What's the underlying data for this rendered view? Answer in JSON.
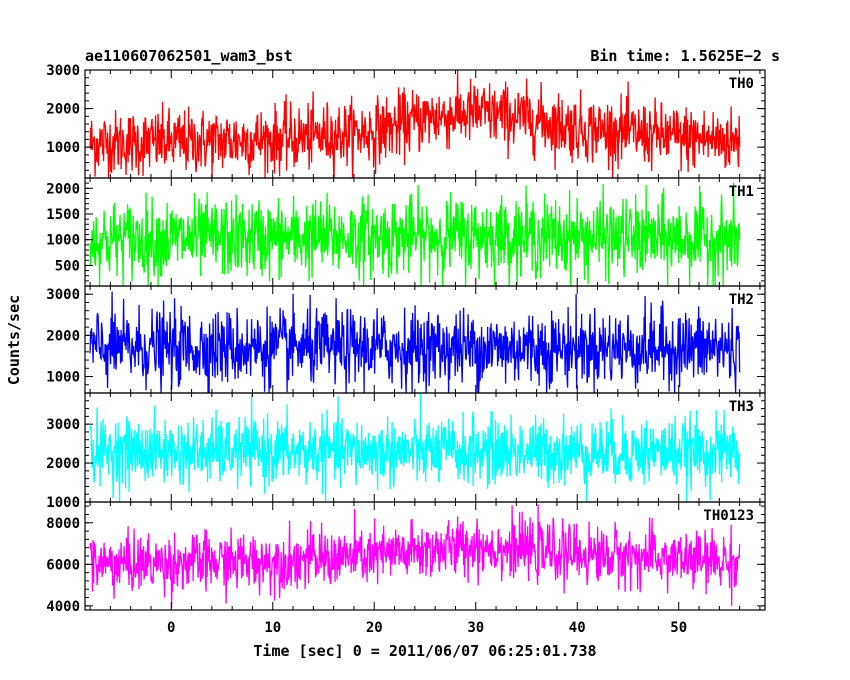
{
  "chart_data": {
    "type": "line",
    "title": "ae110607062501_wam3_bst",
    "subtitle": "Bin time: 1.5625E−2 s",
    "xlabel": "Time [sec] 0 = 2011/06/07 06:25:01.738",
    "ylabel": "Counts/sec",
    "xlim": [
      -8.5,
      58.5
    ],
    "x_ticks": [
      0,
      10,
      20,
      30,
      40,
      50
    ],
    "x_tick_labels": [
      "0",
      "10",
      "20",
      "30",
      "40",
      "50"
    ],
    "x_data_range": [
      -8,
      56
    ],
    "grid": false,
    "panels": [
      {
        "name": "TH0",
        "color": "#ff0000",
        "ylim": [
          200,
          3000
        ],
        "y_ticks": [
          1000,
          2000,
          3000
        ],
        "y_tick_labels": [
          "1000",
          "2000",
          "3000"
        ],
        "profile": [
          {
            "x": -8,
            "mean": 1100
          },
          {
            "x": 0,
            "mean": 1130
          },
          {
            "x": 10,
            "mean": 1200
          },
          {
            "x": 20,
            "mean": 1400
          },
          {
            "x": 25,
            "mean": 1750
          },
          {
            "x": 30,
            "mean": 1900
          },
          {
            "x": 35,
            "mean": 1750
          },
          {
            "x": 40,
            "mean": 1500
          },
          {
            "x": 50,
            "mean": 1250
          },
          {
            "x": 56,
            "mean": 1150
          }
        ],
        "spread": 420
      },
      {
        "name": "TH1",
        "color": "#00ff00",
        "ylim": [
          100,
          2200
        ],
        "y_ticks": [
          500,
          1000,
          1500,
          2000
        ],
        "y_tick_labels": [
          "500",
          "1000",
          "1500",
          "2000"
        ],
        "profile": [
          {
            "x": -8,
            "mean": 1000
          },
          {
            "x": 30,
            "mean": 1080
          },
          {
            "x": 56,
            "mean": 1000
          }
        ],
        "spread": 380
      },
      {
        "name": "TH2",
        "color": "#0000ff",
        "ylim": [
          600,
          3200
        ],
        "y_ticks": [
          1000,
          2000,
          3000
        ],
        "y_tick_labels": [
          "1000",
          "2000",
          "3000"
        ],
        "profile": [
          {
            "x": -8,
            "mean": 1700
          },
          {
            "x": 56,
            "mean": 1700
          }
        ],
        "spread": 460
      },
      {
        "name": "TH3",
        "color": "#00ffff",
        "ylim": [
          1000,
          3800
        ],
        "y_ticks": [
          1000,
          2000,
          3000
        ],
        "y_tick_labels": [
          "1000",
          "2000",
          "3000"
        ],
        "profile": [
          {
            "x": -8,
            "mean": 2300
          },
          {
            "x": 56,
            "mean": 2300
          }
        ],
        "spread": 430
      },
      {
        "name": "TH0123",
        "color": "#ff00ff",
        "ylim": [
          3800,
          9000
        ],
        "y_ticks": [
          4000,
          6000,
          8000
        ],
        "y_tick_labels": [
          "4000",
          "6000",
          "8000"
        ],
        "profile": [
          {
            "x": -8,
            "mean": 6000
          },
          {
            "x": 10,
            "mean": 6150
          },
          {
            "x": 20,
            "mean": 6400
          },
          {
            "x": 30,
            "mean": 6900
          },
          {
            "x": 40,
            "mean": 6500
          },
          {
            "x": 56,
            "mean": 6100
          }
        ],
        "spread": 700
      }
    ]
  }
}
